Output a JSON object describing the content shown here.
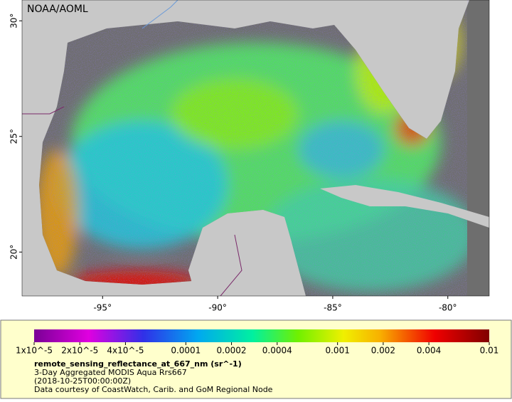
{
  "map": {
    "credit": "NOAA/AOML",
    "lon_range": [
      -98.5,
      -78.2
    ],
    "lat_range": [
      18.1,
      30.9
    ],
    "lat_ticks": [
      {
        "value": 20,
        "label": "20°"
      },
      {
        "value": 25,
        "label": "25°"
      },
      {
        "value": 30,
        "label": "30°"
      }
    ],
    "lon_ticks": [
      {
        "value": -95,
        "label": "-95°"
      },
      {
        "value": -90,
        "label": "-90°"
      },
      {
        "value": -85,
        "label": "-85°"
      },
      {
        "value": -80,
        "label": "-80°"
      }
    ]
  },
  "legend": {
    "colorbar": {
      "range": [
        1e-05,
        0.01
      ],
      "log": true,
      "ticks": [
        {
          "value": 1e-05,
          "label": "1x10^-5"
        },
        {
          "value": 2e-05,
          "label": "2x10^-5"
        },
        {
          "value": 4e-05,
          "label": "4x10^-5"
        },
        0.0001,
        0.0002,
        0.0004,
        0.001,
        0.002,
        0.004,
        0.01
      ]
    },
    "variable": "remote_sensing_reflectance_at_667_nm (sr^-1)",
    "product": "3-Day Aggregated MODIS Aqua Rrs667",
    "time": "(2018-10-25T00:00:00Z)",
    "source": "Data courtesy of CoastWatch, Carib. and GoM Regional Node"
  }
}
